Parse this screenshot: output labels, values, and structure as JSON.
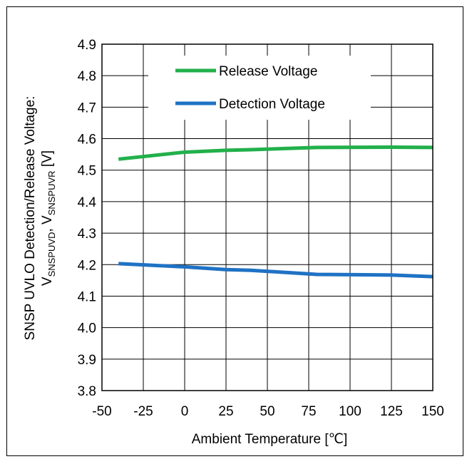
{
  "chart_data": {
    "type": "line",
    "xlabel": "Ambient Temperature [℃]",
    "ylabel": {
      "line1": "SNSP UVLO Detection/Release Voltage:",
      "line2_V1": "V",
      "line2_sub1": "SNSPUVD",
      "line2_sep": ", V",
      "line2_sub2": "SNSPUVR",
      "line2_unit": " [V]"
    },
    "xlim": [
      -50,
      150
    ],
    "ylim": [
      3.8,
      4.9
    ],
    "xticks": [
      -50,
      -25,
      0,
      25,
      50,
      75,
      100,
      125,
      150
    ],
    "yticks": [
      3.8,
      3.9,
      4.0,
      4.1,
      4.2,
      4.3,
      4.4,
      4.5,
      4.6,
      4.7,
      4.8,
      4.9
    ],
    "grid": true,
    "legend": "top-center",
    "series": [
      {
        "name": "Release Voltage",
        "color": "#22b04b",
        "x": [
          -40,
          0,
          25,
          40,
          80,
          125,
          150
        ],
        "y": [
          4.535,
          4.557,
          4.563,
          4.565,
          4.572,
          4.573,
          4.572
        ]
      },
      {
        "name": "Detection Voltage",
        "color": "#1f72c4",
        "x": [
          -40,
          0,
          25,
          40,
          80,
          125,
          150
        ],
        "y": [
          4.203,
          4.193,
          4.184,
          4.182,
          4.169,
          4.167,
          4.162
        ]
      }
    ]
  }
}
